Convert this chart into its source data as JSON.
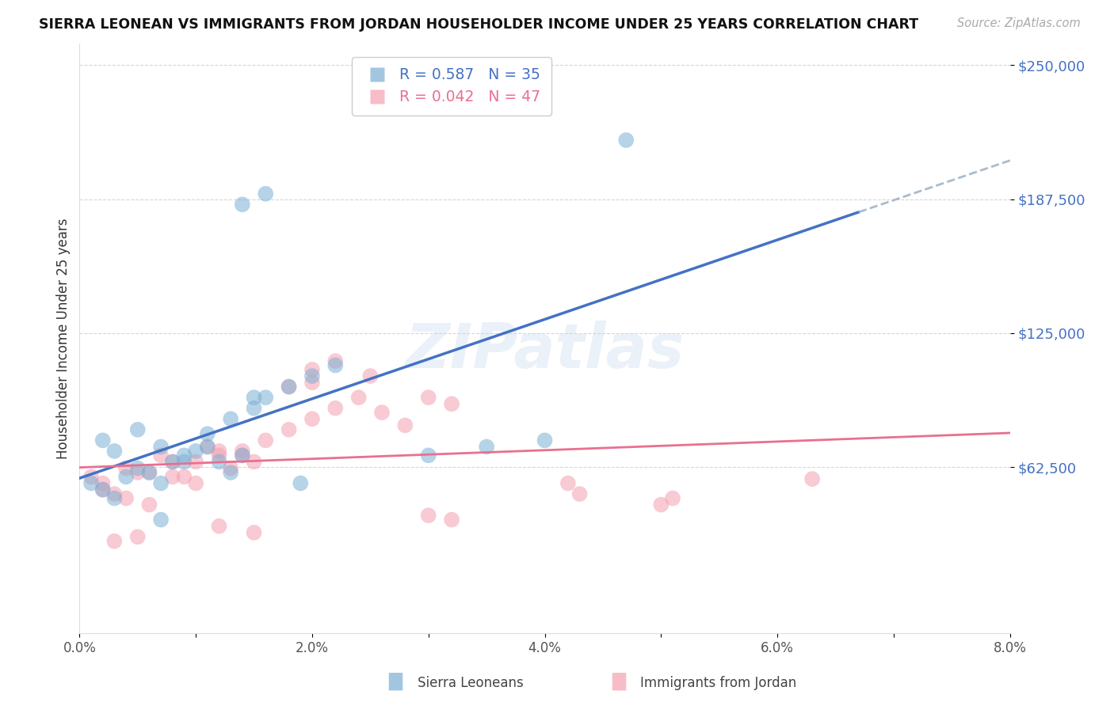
{
  "title": "SIERRA LEONEAN VS IMMIGRANTS FROM JORDAN HOUSEHOLDER INCOME UNDER 25 YEARS CORRELATION CHART",
  "source": "Source: ZipAtlas.com",
  "ylabel": "Householder Income Under 25 years",
  "xlim": [
    0.0,
    0.08
  ],
  "ylim": [
    -15000,
    260000
  ],
  "yticks": [
    62500,
    125000,
    187500,
    250000
  ],
  "ytick_labels": [
    "$62,500",
    "$125,000",
    "$187,500",
    "$250,000"
  ],
  "xticks": [
    0.0,
    0.01,
    0.02,
    0.03,
    0.04,
    0.05,
    0.06,
    0.07,
    0.08
  ],
  "xtick_labels": [
    "0.0%",
    "",
    "2.0%",
    "",
    "4.0%",
    "",
    "6.0%",
    "",
    "8.0%"
  ],
  "blue_color": "#7BAFD4",
  "pink_color": "#F4A0B0",
  "blue_line_color": "#4472C4",
  "pink_line_color": "#E87090",
  "dash_color": "#AABBCC",
  "blue_R": 0.587,
  "blue_N": 35,
  "pink_R": 0.042,
  "pink_N": 47,
  "watermark": "ZIPatlas",
  "legend_label_blue": "Sierra Leoneans",
  "legend_label_pink": "Immigrants from Jordan",
  "blue_x": [
    0.001,
    0.002,
    0.003,
    0.004,
    0.005,
    0.006,
    0.007,
    0.008,
    0.009,
    0.01,
    0.011,
    0.012,
    0.013,
    0.014,
    0.002,
    0.003,
    0.005,
    0.007,
    0.009,
    0.011,
    0.015,
    0.018,
    0.02,
    0.022,
    0.013,
    0.015,
    0.016,
    0.03,
    0.035,
    0.04,
    0.014,
    0.016,
    0.007,
    0.047,
    0.019
  ],
  "blue_y": [
    55000,
    52000,
    48000,
    58000,
    62000,
    60000,
    55000,
    65000,
    68000,
    70000,
    72000,
    65000,
    60000,
    68000,
    75000,
    70000,
    80000,
    72000,
    65000,
    78000,
    95000,
    100000,
    105000,
    110000,
    85000,
    90000,
    95000,
    68000,
    72000,
    75000,
    185000,
    190000,
    38000,
    215000,
    55000
  ],
  "pink_x": [
    0.001,
    0.002,
    0.003,
    0.004,
    0.005,
    0.006,
    0.007,
    0.008,
    0.009,
    0.01,
    0.011,
    0.012,
    0.013,
    0.014,
    0.015,
    0.002,
    0.004,
    0.006,
    0.008,
    0.01,
    0.012,
    0.014,
    0.016,
    0.018,
    0.02,
    0.022,
    0.024,
    0.026,
    0.028,
    0.03,
    0.032,
    0.018,
    0.02,
    0.025,
    0.042,
    0.043,
    0.05,
    0.051,
    0.02,
    0.022,
    0.03,
    0.032,
    0.063,
    0.003,
    0.005,
    0.012,
    0.015
  ],
  "pink_y": [
    58000,
    55000,
    50000,
    62000,
    60000,
    45000,
    68000,
    65000,
    58000,
    55000,
    72000,
    68000,
    62000,
    70000,
    65000,
    52000,
    48000,
    60000,
    58000,
    65000,
    70000,
    68000,
    75000,
    80000,
    85000,
    90000,
    95000,
    88000,
    82000,
    95000,
    92000,
    100000,
    102000,
    105000,
    55000,
    50000,
    45000,
    48000,
    108000,
    112000,
    40000,
    38000,
    57000,
    28000,
    30000,
    35000,
    32000
  ]
}
